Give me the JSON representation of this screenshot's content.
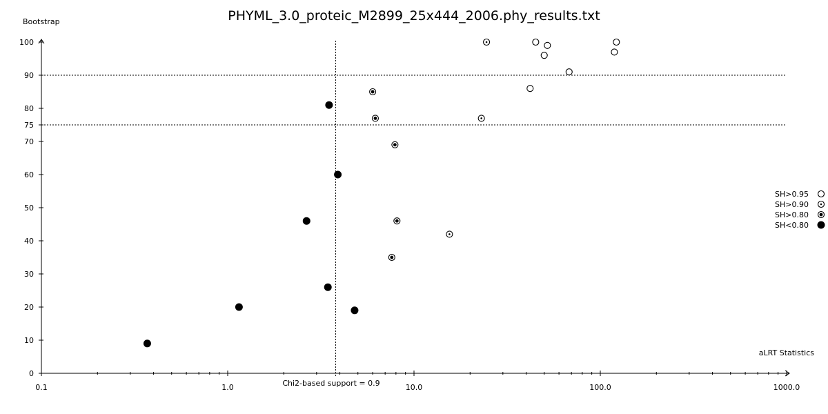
{
  "chart_data": {
    "type": "scatter",
    "title": "PHYML_3.0_proteic_M2899_25x444_2006.phy_results.txt",
    "ylabel": "Bootstrap",
    "xlabel": "aLRT Statistics",
    "x_scale": "log",
    "xlim": [
      0.1,
      1000.0
    ],
    "ylim": [
      0,
      100
    ],
    "x_ticks": [
      0.1,
      1.0,
      10.0,
      100.0,
      1000.0
    ],
    "x_tick_labels": [
      "0.1",
      "1.0",
      "10.0",
      "100.0",
      "1000.0"
    ],
    "y_ticks": [
      0,
      10,
      20,
      30,
      40,
      50,
      60,
      70,
      75,
      80,
      90,
      100
    ],
    "y_tick_labels": [
      "0",
      "10",
      "20",
      "30",
      "40",
      "50",
      "60",
      "70",
      "75",
      "80",
      "90",
      "100"
    ],
    "reference_lines": {
      "vertical": {
        "x": 3.8,
        "label": "Chi2-based support = 0.9"
      },
      "horizontal": [
        90,
        75
      ]
    },
    "legend": {
      "position": "right",
      "entries": [
        {
          "label": "SH>0.95",
          "marker": "open-circle"
        },
        {
          "label": "SH>0.90",
          "marker": "circle-small-dot"
        },
        {
          "label": "SH>0.80",
          "marker": "circle-big-dot"
        },
        {
          "label": "SH<0.80",
          "marker": "filled-circle"
        }
      ]
    },
    "series": [
      {
        "name": "SH>0.95",
        "points": [
          {
            "x": 45,
            "y": 100
          },
          {
            "x": 52,
            "y": 99
          },
          {
            "x": 122,
            "y": 100
          },
          {
            "x": 119,
            "y": 97
          },
          {
            "x": 50,
            "y": 96
          },
          {
            "x": 68,
            "y": 91
          },
          {
            "x": 42,
            "y": 86
          }
        ]
      },
      {
        "name": "SH>0.90",
        "points": [
          {
            "x": 24.5,
            "y": 100
          },
          {
            "x": 23,
            "y": 77
          },
          {
            "x": 15.5,
            "y": 42
          }
        ]
      },
      {
        "name": "SH>0.80",
        "points": [
          {
            "x": 6.0,
            "y": 85
          },
          {
            "x": 6.2,
            "y": 77
          },
          {
            "x": 7.9,
            "y": 69
          },
          {
            "x": 8.1,
            "y": 46
          },
          {
            "x": 7.6,
            "y": 35
          }
        ]
      },
      {
        "name": "SH<0.80",
        "points": [
          {
            "x": 3.5,
            "y": 81
          },
          {
            "x": 3.9,
            "y": 60
          },
          {
            "x": 2.65,
            "y": 46
          },
          {
            "x": 3.45,
            "y": 26
          },
          {
            "x": 4.8,
            "y": 19
          },
          {
            "x": 1.15,
            "y": 20
          },
          {
            "x": 0.37,
            "y": 9
          }
        ]
      }
    ]
  }
}
